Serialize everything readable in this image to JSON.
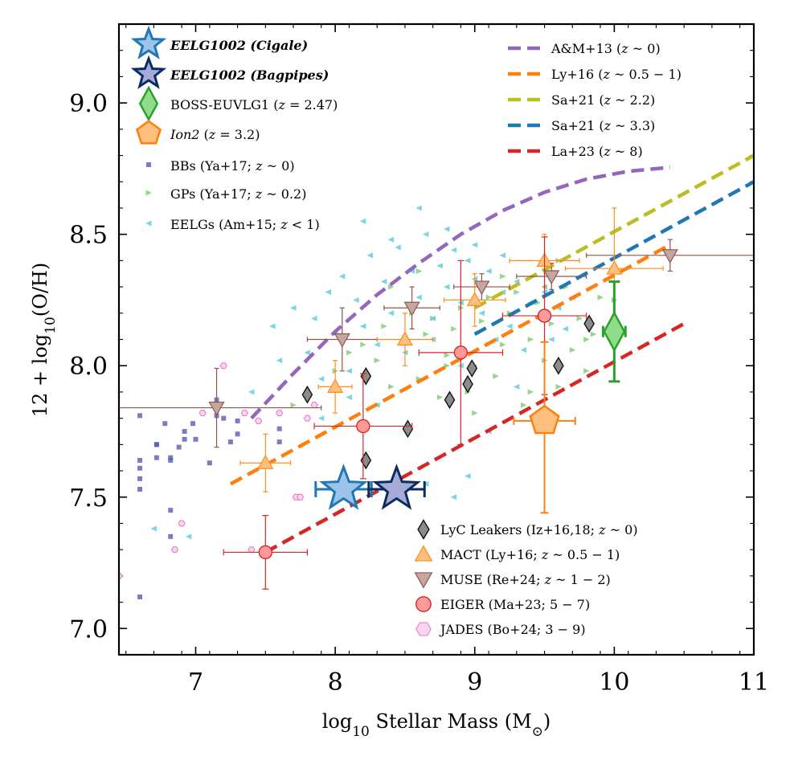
{
  "chart_data": {
    "type": "scatter",
    "xlabel": "log₁₀ Stellar Mass (M⊙)",
    "ylabel": "12 + log₁₀(O/H)",
    "xlim": [
      6.45,
      11.0
    ],
    "ylim": [
      6.9,
      9.3
    ],
    "xticks": [
      "7",
      "8",
      "9",
      "10",
      "11"
    ],
    "yticks": [
      "7.0",
      "7.5",
      "8.0",
      "8.5",
      "9.0"
    ],
    "grid": false,
    "legend_placement": [
      "top-left",
      "top-right",
      "bottom-right"
    ],
    "relations": [
      {
        "name": "A&M+13 (z ~ 0)",
        "color": "#9467bd",
        "x": [
          7.4,
          7.7,
          8.0,
          8.3,
          8.6,
          8.9,
          9.2,
          9.5,
          9.8,
          10.1,
          10.4
        ],
        "y": [
          7.8,
          7.97,
          8.13,
          8.27,
          8.39,
          8.5,
          8.59,
          8.66,
          8.71,
          8.74,
          8.755
        ]
      },
      {
        "name": "Ly+16 (z ~ 0.5 − 1)",
        "color": "#ff7f0e",
        "x": [
          7.25,
          10.4
        ],
        "y": [
          7.55,
          8.46
        ]
      },
      {
        "name": "Sa+21 (z ~ 2.2)",
        "color": "#bcbd22",
        "x": [
          9.0,
          11.0
        ],
        "y": [
          8.22,
          8.8
        ]
      },
      {
        "name": "Sa+21 (z ~ 3.3)",
        "color": "#1f77b4",
        "x": [
          9.0,
          11.0
        ],
        "y": [
          8.12,
          8.7
        ]
      },
      {
        "name": "La+23 (z ~ 8)",
        "color": "#d62728",
        "x": [
          7.5,
          10.5
        ],
        "y": [
          7.29,
          8.16
        ]
      }
    ],
    "eelg1002": [
      {
        "name": "EELG1002 (Cigale)",
        "x": 8.06,
        "y": 7.53,
        "xerr": 0.2,
        "color": "#9ec3e8",
        "edge": "#1f77b4"
      },
      {
        "name": "EELG1002 (Bagpipes)",
        "x": 8.44,
        "y": 7.53,
        "xerr": 0.2,
        "color": "#a6acd9",
        "edge": "#0b2c5e"
      }
    ],
    "boss_euvlg1": {
      "name": "BOSS-EUVLG1 (z = 2.47)",
      "x": 10.0,
      "y": 8.13,
      "yerr": [
        0.19,
        0.19
      ],
      "xerr": 0.08
    },
    "ion2": {
      "name": "Ion2 (z = 3.2)",
      "x": 9.5,
      "y": 7.79,
      "yerr": [
        0.35,
        0.3
      ],
      "xerr": 0.22
    },
    "bbs": {
      "name": "BBs (Ya+17; z ~ 0)",
      "x": [
        6.6,
        6.6,
        6.6,
        6.6,
        6.6,
        6.6,
        6.72,
        6.72,
        6.72,
        6.78,
        6.82,
        6.82,
        6.82,
        6.82,
        6.88,
        6.92,
        6.92,
        6.98,
        7.0,
        7.1,
        7.15,
        7.15,
        7.2,
        7.25,
        7.3,
        7.3,
        7.6,
        7.6
      ],
      "y": [
        7.12,
        7.53,
        7.57,
        7.61,
        7.64,
        7.81,
        7.65,
        7.7,
        7.7,
        7.78,
        7.35,
        7.45,
        7.64,
        7.65,
        7.69,
        7.72,
        7.75,
        7.78,
        7.72,
        7.63,
        7.81,
        7.87,
        7.8,
        7.71,
        7.74,
        7.79,
        7.71,
        7.76
      ]
    },
    "gps": {
      "name": "GPs (Ya+17; z ~ 0.2)",
      "x": [
        7.7,
        8.0,
        8.1,
        8.2,
        8.3,
        8.35,
        8.4,
        8.5,
        8.55,
        8.6,
        8.65,
        8.7,
        8.75,
        8.8,
        8.85,
        8.9,
        8.95,
        9.0,
        9.05,
        9.1,
        9.15,
        9.2,
        9.25,
        9.3,
        9.35,
        9.4,
        9.45,
        9.5,
        9.55,
        9.6,
        9.65,
        9.7,
        9.75,
        9.8,
        9.85,
        9.9,
        8.4,
        8.6,
        8.8,
        9.0,
        9.2,
        9.4,
        9.6,
        9.8,
        10.0
      ],
      "y": [
        7.85,
        7.98,
        8.05,
        8.08,
        8.02,
        8.15,
        7.92,
        8.1,
        8.2,
        7.95,
        8.12,
        8.18,
        7.88,
        8.04,
        8.14,
        8.22,
        7.9,
        8.0,
        8.17,
        8.26,
        7.96,
        8.08,
        8.2,
        8.28,
        7.85,
        8.1,
        8.24,
        8.02,
        8.16,
        7.92,
        8.3,
        8.06,
        8.18,
        7.98,
        8.12,
        8.26,
        8.3,
        8.36,
        8.0,
        7.82,
        8.34,
        7.9,
        8.4,
        8.1,
        8.25
      ]
    },
    "eelgs": {
      "name": "EELGs (Am+15; z < 1)",
      "x": [
        6.7,
        6.95,
        7.4,
        7.55,
        7.6,
        7.7,
        7.8,
        7.85,
        7.9,
        7.95,
        8.0,
        8.05,
        8.1,
        8.15,
        8.2,
        8.25,
        8.3,
        8.35,
        8.4,
        8.45,
        8.5,
        8.55,
        8.6,
        8.65,
        8.7,
        8.75,
        8.8,
        8.85,
        8.9,
        8.95,
        9.0,
        9.05,
        9.1,
        9.15,
        9.2,
        9.25,
        9.3,
        9.35,
        9.4,
        9.45,
        9.5,
        9.55,
        9.6,
        9.65,
        9.7,
        7.9,
        8.1,
        8.3,
        8.5,
        8.7,
        8.9,
        9.1,
        9.3,
        8.2,
        8.4,
        8.6,
        8.8,
        9.0,
        9.2,
        8.45,
        8.65,
        8.85,
        8.95,
        9.5
      ],
      "y": [
        7.38,
        7.35,
        7.9,
        8.15,
        8.02,
        8.22,
        8.05,
        8.18,
        7.95,
        8.28,
        8.12,
        8.34,
        7.98,
        8.25,
        8.15,
        8.42,
        8.08,
        8.32,
        8.2,
        8.45,
        8.1,
        8.36,
        8.26,
        8.5,
        8.18,
        8.38,
        8.3,
        8.44,
        8.24,
        8.4,
        8.33,
        8.2,
        8.36,
        8.1,
        8.28,
        8.15,
        8.32,
        8.06,
        8.24,
        8.18,
        8.3,
        8.1,
        8.22,
        8.14,
        8.26,
        7.8,
        7.88,
        7.85,
        8.05,
        8.1,
        8.0,
        7.75,
        7.92,
        8.55,
        8.48,
        8.6,
        8.52,
        8.46,
        8.42,
        7.52,
        7.55,
        7.5,
        7.58,
        8.28
      ]
    },
    "lyc_leakers": {
      "name": "LyC Leakers (Iz+16,18; z ~ 0)",
      "x": [
        7.8,
        8.22,
        8.22,
        8.52,
        8.82,
        8.95,
        8.98,
        9.6,
        9.82
      ],
      "y": [
        7.89,
        7.96,
        7.64,
        7.76,
        7.87,
        7.93,
        7.99,
        8.0,
        8.16
      ]
    },
    "mact": {
      "name": "MACT (Ly+16; z ~ 0.5 − 1)",
      "points": [
        {
          "x": 7.5,
          "y": 7.63,
          "xerr": 0.18,
          "yerr": 0.11
        },
        {
          "x": 8.0,
          "y": 7.92,
          "xerr": 0.12,
          "yerr": 0.1
        },
        {
          "x": 8.5,
          "y": 8.1,
          "xerr": 0.2,
          "yerr": 0.1
        },
        {
          "x": 9.0,
          "y": 8.25,
          "xerr": 0.22,
          "yerr": 0.1
        },
        {
          "x": 9.5,
          "y": 8.4,
          "xerr": 0.25,
          "yerr": 0.1
        },
        {
          "x": 10.0,
          "y": 8.37,
          "xerr": 0.35,
          "yerr": 0.23
        }
      ]
    },
    "muse": {
      "name": "MUSE (Re+24; z ~ 1 − 2)",
      "points": [
        {
          "x": 7.15,
          "y": 7.84,
          "xerr": 0.75,
          "yerr": 0.15
        },
        {
          "x": 8.05,
          "y": 8.1,
          "xerr": 0.25,
          "yerr": 0.12
        },
        {
          "x": 8.55,
          "y": 8.22,
          "xerr": 0.2,
          "yerr": 0.08
        },
        {
          "x": 9.05,
          "y": 8.3,
          "xerr": 0.2,
          "yerr": 0.05
        },
        {
          "x": 9.55,
          "y": 8.34,
          "xerr": 0.25,
          "yerr": 0.05
        },
        {
          "x": 10.4,
          "y": 8.42,
          "xerr": 0.6,
          "yerr": 0.06
        }
      ]
    },
    "eiger": {
      "name": "EIGER (Ma+23; 5 − 7)",
      "points": [
        {
          "x": 7.5,
          "y": 7.29,
          "xerr": 0.3,
          "yerr": 0.14
        },
        {
          "x": 8.2,
          "y": 7.77,
          "xerr": 0.35,
          "yerr": 0.2
        },
        {
          "x": 8.9,
          "y": 8.05,
          "xerr": 0.3,
          "yerr": 0.35
        },
        {
          "x": 9.5,
          "y": 8.19,
          "xerr": 0.3,
          "yerr": 0.3
        }
      ]
    },
    "jades": {
      "name": "JADES (Bo+24; 3 − 9)",
      "x": [
        6.45,
        6.85,
        6.9,
        7.05,
        7.4,
        7.45,
        7.6,
        7.72,
        7.75,
        7.8,
        7.85,
        7.35,
        7.2
      ],
      "y": [
        7.2,
        7.3,
        7.4,
        7.82,
        7.3,
        7.79,
        7.82,
        7.5,
        7.5,
        7.8,
        7.85,
        7.82,
        8.0
      ]
    },
    "legend_left": [
      {
        "text": "EELG1002 (Cigale)",
        "marker": "star-light"
      },
      {
        "text": "EELG1002 (Bagpipes)",
        "marker": "star-dark"
      },
      {
        "text": "BOSS-EUVLG1 (z = 2.47)",
        "marker": "diamond-green"
      },
      {
        "text": "Ion2 (z = 3.2)",
        "marker": "pentagon-orange"
      },
      {
        "text": "BBs (Ya+17; z ~ 0)",
        "marker": "square-purple"
      },
      {
        "text": "GPs (Ya+17; z ~ 0.2)",
        "marker": "triangle-right-green"
      },
      {
        "text": "EELGs (Am+15; z < 1)",
        "marker": "triangle-left-cyan"
      }
    ],
    "legend_right": [
      {
        "text": "A&M+13 (z ~ 0)",
        "color": "#9467bd"
      },
      {
        "text": "Ly+16 (z ~ 0.5 − 1)",
        "color": "#ff7f0e"
      },
      {
        "text": "Sa+21 (z ~ 2.2)",
        "color": "#bcbd22"
      },
      {
        "text": "Sa+21 (z ~ 3.3)",
        "color": "#1f77b4"
      },
      {
        "text": "La+23 (z ~ 8)",
        "color": "#d62728"
      }
    ],
    "legend_bottom": [
      {
        "text": "LyC Leakers (Iz+16,18; z ~ 0)",
        "marker": "diamond-gray"
      },
      {
        "text": "MACT (Ly+16; z ~ 0.5 − 1)",
        "marker": "triangle-up-orange"
      },
      {
        "text": "MUSE (Re+24; z ~ 1 − 2)",
        "marker": "triangle-down-brown"
      },
      {
        "text": "EIGER (Ma+23; 5 − 7)",
        "marker": "circle-red"
      },
      {
        "text": "JADES (Bo+24; 3 − 9)",
        "marker": "hexagon-pink"
      }
    ]
  }
}
